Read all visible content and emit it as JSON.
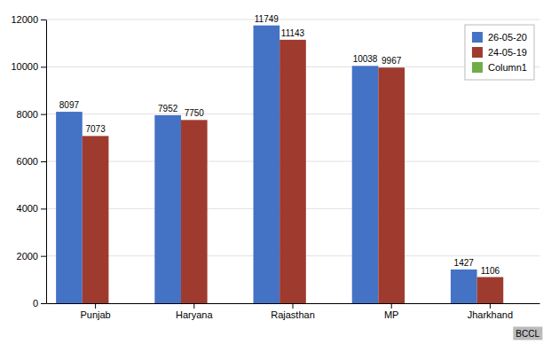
{
  "chart_data": {
    "type": "bar",
    "categories": [
      "Punjab",
      "Haryana",
      "Rajasthan",
      "MP",
      "Jharkhand"
    ],
    "series": [
      {
        "name": "26-05-20",
        "color": "#4472C4",
        "values": [
          8097,
          7952,
          11749,
          10038,
          1427
        ]
      },
      {
        "name": "24-05-19",
        "color": "#9E3B2E",
        "values": [
          7073,
          7750,
          11143,
          9967,
          1106
        ]
      },
      {
        "name": "Column1",
        "color": "#70AD47",
        "values": [
          0,
          0,
          0,
          0,
          0
        ]
      }
    ],
    "ylim": [
      0,
      12000
    ],
    "yticks": [
      0,
      2000,
      4000,
      6000,
      8000,
      10000,
      12000
    ],
    "grid": true,
    "legend": "upper right",
    "data_labels": true,
    "annotations": [
      "BCCL"
    ]
  }
}
